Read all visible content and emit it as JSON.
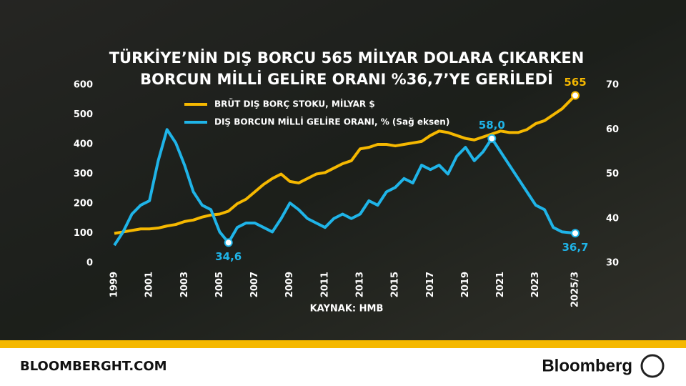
{
  "chart_data": {
    "type": "line",
    "title": "TÜRKİYE’NİN DIŞ BORCU 565 MİLYAR DOLARA ÇIKARKEN",
    "subtitle": "BORCUN MİLLİ GELİRE ORANI %36,7’YE GERİLEDİ",
    "source": "KAYNAK: HMB",
    "x": [
      1999,
      1999.5,
      2000,
      2000.5,
      2001,
      2001.5,
      2002,
      2002.5,
      2003,
      2003.5,
      2004,
      2004.5,
      2005,
      2005.5,
      2006,
      2006.5,
      2007,
      2007.5,
      2008,
      2008.5,
      2009,
      2009.5,
      2010,
      2010.5,
      2011,
      2011.5,
      2012,
      2012.5,
      2013,
      2013.5,
      2014,
      2014.5,
      2015,
      2015.5,
      2016,
      2016.5,
      2017,
      2017.5,
      2018,
      2018.5,
      2019,
      2019.5,
      2020,
      2020.5,
      2021,
      2021.5,
      2022,
      2022.5,
      2023,
      2023.5,
      2024,
      2024.5,
      2025.25
    ],
    "xlim": [
      1999,
      2025.25
    ],
    "xticks": [
      1999,
      2001,
      2003,
      2005,
      2007,
      2009,
      2011,
      2013,
      2015,
      2017,
      2019,
      2021,
      2023,
      {
        "value": 2025.25,
        "label": "2025/3"
      }
    ],
    "ylim": [
      0,
      600
    ],
    "yticks": [
      0,
      100,
      200,
      300,
      400,
      500,
      600
    ],
    "y2lim": [
      30,
      70
    ],
    "y2ticks": [
      30,
      40,
      50,
      60,
      70
    ],
    "series": [
      {
        "name": "BRÜT DIŞ BORÇ STOKU, MİLYAR $",
        "color": "#f5b800",
        "values": [
          100,
          105,
          110,
          115,
          115,
          118,
          125,
          130,
          140,
          145,
          155,
          162,
          165,
          175,
          200,
          215,
          240,
          265,
          285,
          300,
          275,
          270,
          285,
          300,
          305,
          320,
          335,
          345,
          385,
          390,
          400,
          400,
          395,
          400,
          405,
          410,
          430,
          445,
          440,
          430,
          420,
          415,
          425,
          435,
          445,
          440,
          440,
          450,
          470,
          480,
          500,
          520,
          565
        ],
        "value_labels": [
          null,
          null,
          null,
          null,
          null,
          null,
          null,
          null,
          null,
          null,
          null,
          null,
          null,
          null,
          null,
          null,
          null,
          null,
          null,
          null,
          null,
          null,
          null,
          null,
          null,
          null,
          null,
          null,
          null,
          null,
          null,
          null,
          null,
          null,
          null,
          null,
          null,
          null,
          null,
          null,
          null,
          null,
          null,
          null,
          null,
          null,
          null,
          null,
          null,
          null,
          null,
          null,
          "565"
        ]
      },
      {
        "name": "DIŞ BORCUN MİLLİ GELİRE ORANI, % (Sağ eksen)",
        "color": "#1fb4e8",
        "axis": "y2",
        "values": [
          34,
          37,
          41,
          43,
          44,
          53,
          60,
          57,
          52,
          46,
          43,
          42,
          37,
          34.6,
          38,
          39,
          39,
          38,
          37,
          40,
          43.5,
          42,
          40,
          39,
          38,
          40,
          41,
          40,
          41,
          44,
          43,
          46,
          47,
          49,
          48,
          52,
          51,
          52,
          50,
          54,
          56,
          53,
          55,
          58,
          55,
          52,
          49,
          46,
          43,
          42,
          38,
          37,
          36.7
        ],
        "value_labels": [
          null,
          null,
          null,
          null,
          null,
          null,
          null,
          null,
          null,
          null,
          null,
          null,
          null,
          "34,6",
          null,
          null,
          null,
          null,
          null,
          null,
          null,
          null,
          null,
          null,
          null,
          null,
          null,
          null,
          null,
          null,
          null,
          null,
          null,
          null,
          null,
          null,
          null,
          null,
          null,
          null,
          null,
          null,
          null,
          "58,0",
          null,
          null,
          null,
          null,
          null,
          null,
          null,
          null,
          "36,7"
        ]
      }
    ]
  },
  "footer": {
    "site": "BLOOMBERGHT.COM",
    "brand": "Bloomberg"
  }
}
